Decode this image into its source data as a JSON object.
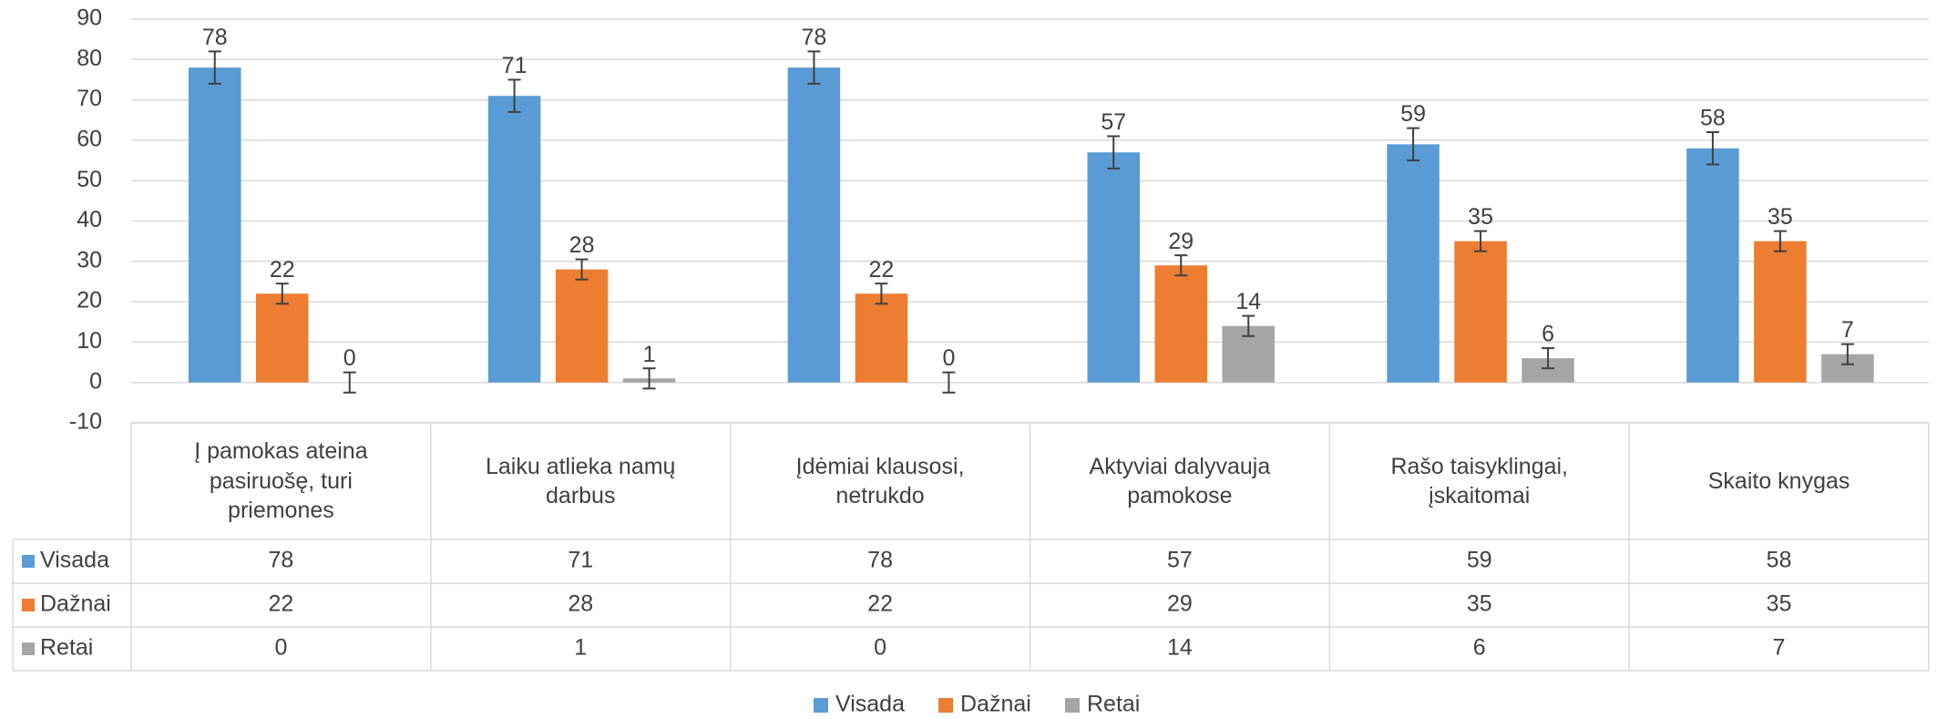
{
  "chart_data": {
    "type": "bar",
    "categories": [
      "Į pamokas ateina pasiruošę, turi priemones",
      "Laiku atlieka namų darbus",
      "Įdėmiai klausosi, netrukdo",
      "Aktyviai dalyvauja pamokose",
      "Rašo taisyklingai, įskaitomai",
      "Skaito knygas"
    ],
    "series": [
      {
        "name": "Visada",
        "color": "#5b9bd5",
        "values": [
          78,
          71,
          78,
          57,
          59,
          58
        ],
        "errors": [
          4,
          4,
          4,
          4,
          4,
          4
        ]
      },
      {
        "name": "Dažnai",
        "color": "#ed7d31",
        "values": [
          22,
          28,
          22,
          29,
          35,
          35
        ],
        "errors": [
          2.5,
          2.5,
          2.5,
          2.5,
          2.5,
          2.5
        ]
      },
      {
        "name": "Retai",
        "color": "#a5a5a5",
        "values": [
          0,
          1,
          0,
          14,
          6,
          7
        ],
        "errors": [
          2.5,
          2.5,
          2.5,
          2.5,
          2.5,
          2.5
        ]
      }
    ],
    "ylim": [
      -10,
      90
    ],
    "yticks": [
      -10,
      0,
      10,
      20,
      30,
      40,
      50,
      60,
      70,
      80,
      90
    ],
    "grid": true,
    "data_table": true,
    "legend": "bottom"
  }
}
